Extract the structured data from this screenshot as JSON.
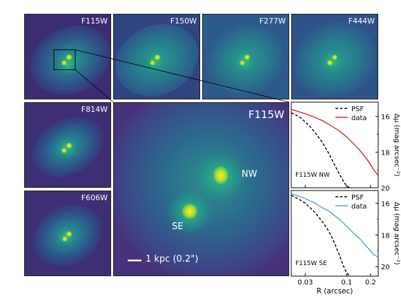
{
  "filters": {
    "f115w": "F115W",
    "f150w": "F150W",
    "f277w": "F277W",
    "f444w": "F444W",
    "f814w": "F814W",
    "f606w": "F606W",
    "zoom": "F115W"
  },
  "zoom_labels": {
    "nw": "NW",
    "se": "SE",
    "scalebar": "1 kpc (0.2\")"
  },
  "chart_data": [
    {
      "type": "line",
      "x_scale": "log",
      "y_inverted": true,
      "xlim": [
        0.02,
        0.25
      ],
      "ylim": [
        20,
        15.2
      ],
      "ylabel": "Δμ (mag arcsec⁻²)",
      "yticks": [
        16,
        18,
        20
      ],
      "legend": "top-right",
      "annotation": "F115W NW",
      "series": [
        {
          "name": "PSF",
          "color": "#000000",
          "style": "dashed",
          "x": [
            0.02,
            0.025,
            0.03,
            0.035,
            0.04,
            0.05,
            0.06,
            0.07,
            0.08,
            0.09,
            0.1,
            0.11
          ],
          "y": [
            15.8,
            16.0,
            16.3,
            16.6,
            16.9,
            17.5,
            18.1,
            18.7,
            19.2,
            19.6,
            19.9,
            20.0
          ]
        },
        {
          "name": "data",
          "color": "#d62728",
          "style": "solid",
          "x": [
            0.02,
            0.03,
            0.04,
            0.05,
            0.06,
            0.08,
            0.1,
            0.12,
            0.15,
            0.18,
            0.2,
            0.22,
            0.25
          ],
          "y": [
            15.6,
            15.85,
            16.05,
            16.25,
            16.45,
            16.8,
            17.15,
            17.5,
            17.95,
            18.4,
            18.7,
            19.0,
            19.3
          ]
        }
      ]
    },
    {
      "type": "line",
      "x_scale": "log",
      "y_inverted": true,
      "xlim": [
        0.02,
        0.25
      ],
      "ylim": [
        20.6,
        15.2
      ],
      "xlabel": "R (arcsec)",
      "ylabel": "Δμ (mag arcsec⁻²)",
      "xticks": [
        0.03,
        0.1,
        0.2
      ],
      "yticks": [
        16,
        18,
        20
      ],
      "legend": "top-right",
      "annotation": "F115W SE",
      "series": [
        {
          "name": "PSF",
          "color": "#000000",
          "style": "dashed",
          "x": [
            0.02,
            0.025,
            0.03,
            0.035,
            0.04,
            0.05,
            0.06,
            0.07,
            0.08,
            0.09,
            0.1,
            0.11
          ],
          "y": [
            15.5,
            15.75,
            16.0,
            16.3,
            16.6,
            17.2,
            17.8,
            18.5,
            19.2,
            19.9,
            20.4,
            20.6
          ]
        },
        {
          "name": "data",
          "color": "#5b9bd5",
          "style": "solid",
          "x": [
            0.02,
            0.03,
            0.04,
            0.05,
            0.06,
            0.08,
            0.1,
            0.12,
            0.15,
            0.18,
            0.2,
            0.22,
            0.25
          ],
          "y": [
            15.4,
            15.7,
            16.0,
            16.3,
            16.5,
            17.0,
            17.45,
            17.85,
            18.3,
            18.75,
            19.0,
            19.25,
            19.4
          ]
        }
      ]
    }
  ]
}
